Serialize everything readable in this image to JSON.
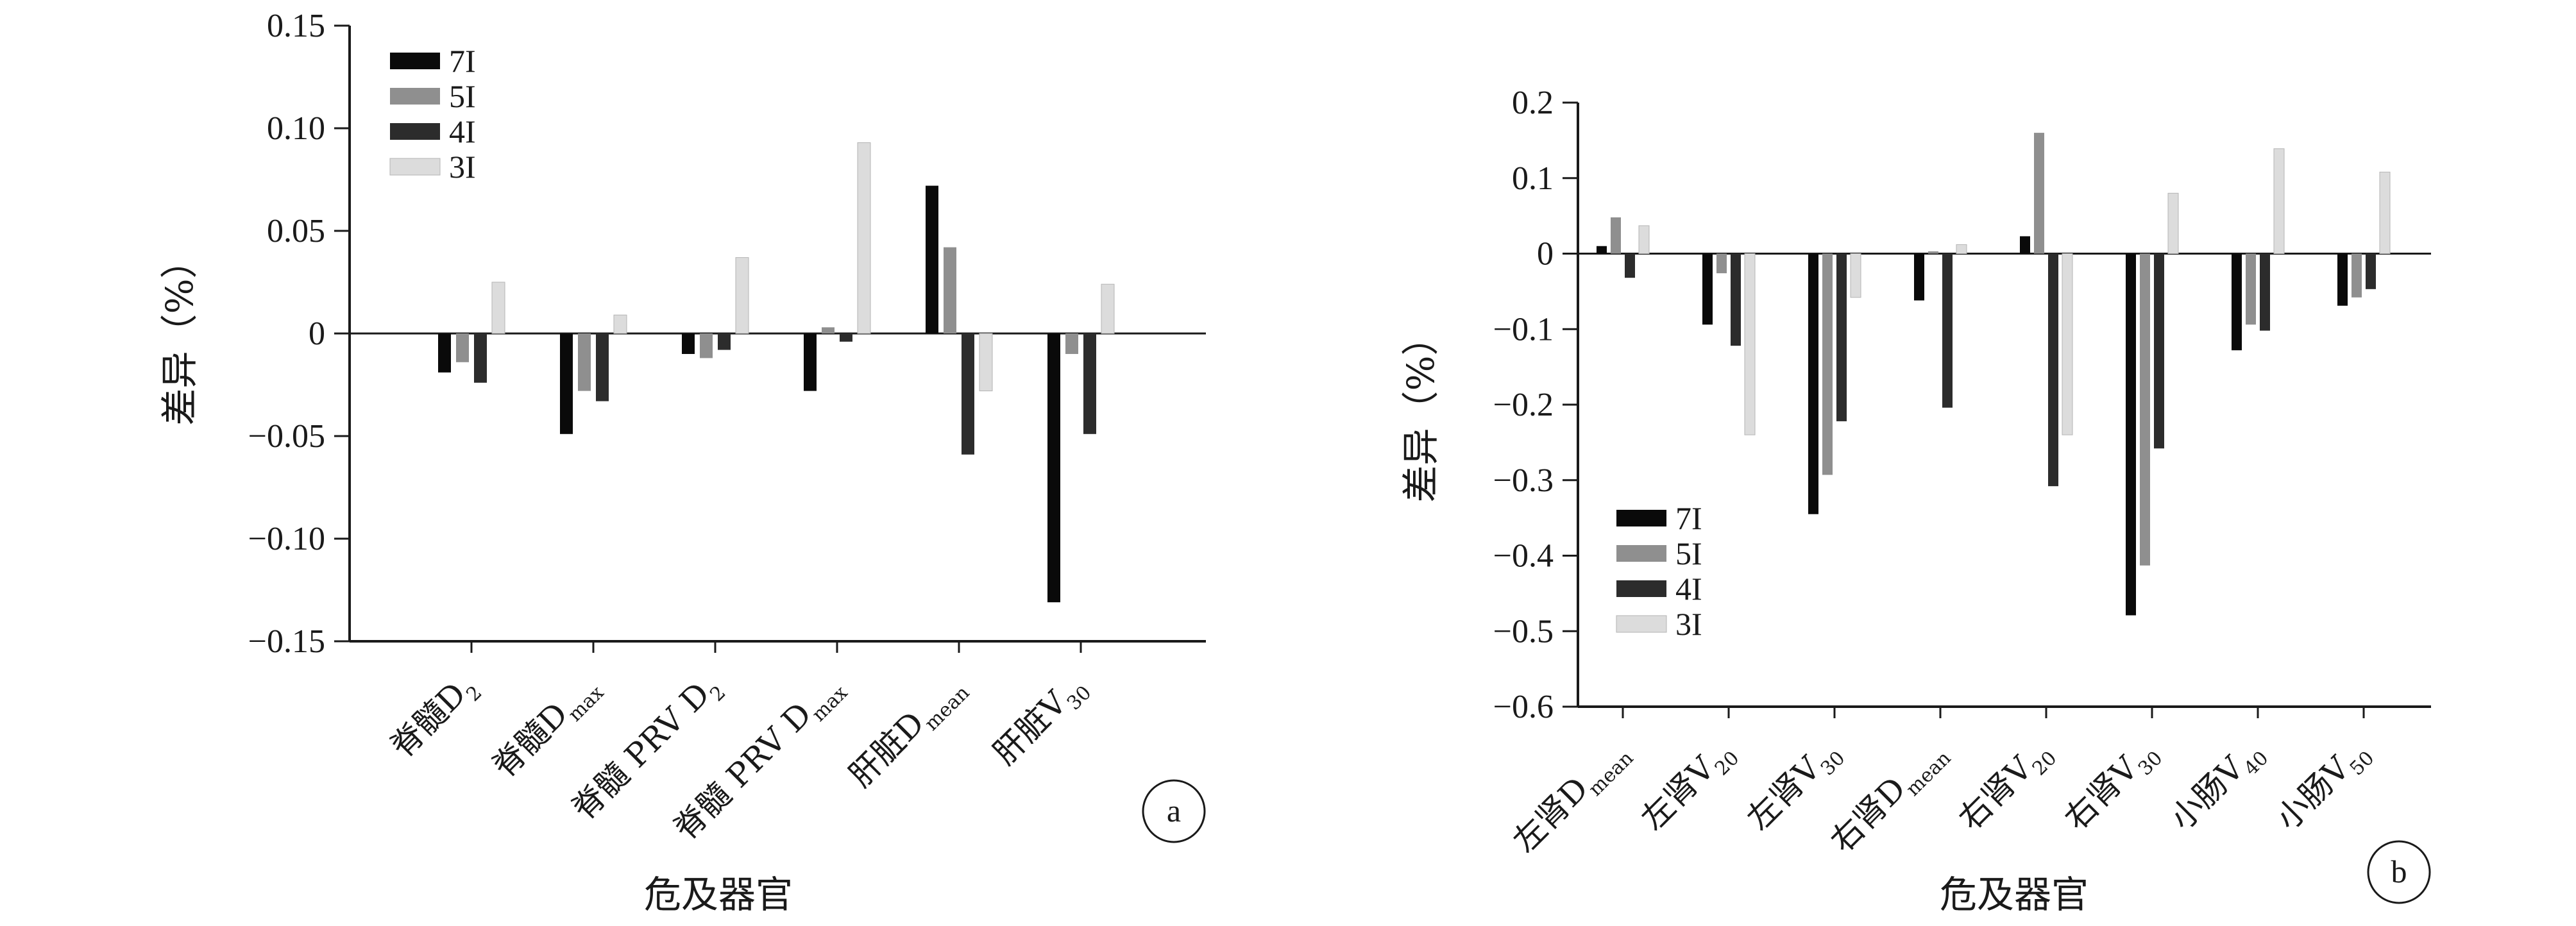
{
  "colors": {
    "7I": "#0a0a0a",
    "5I": "#8f8f8f",
    "4I": "#2c2c2c",
    "3I": "#dcdcdc"
  },
  "chart_data": [
    {
      "type": "bar",
      "panel": "a",
      "xlabel": "危及器官",
      "ylabel": "差异（%）",
      "ylim": [
        -0.15,
        0.15
      ],
      "yticks": [
        -0.15,
        -0.1,
        -0.05,
        0,
        0.05,
        0.1,
        0.15
      ],
      "ytick_labels": [
        "−0.15",
        "−0.10",
        "−0.05",
        "0",
        "0.05",
        "0.10",
        "0.15"
      ],
      "legend_position": "top-left",
      "categories": [
        {
          "main": "脊髓D",
          "sub": "2"
        },
        {
          "main": "脊髓D",
          "sub": "max"
        },
        {
          "main": "脊髓 PRV D",
          "sub": "2"
        },
        {
          "main": "脊髓 PRV D",
          "sub": "max"
        },
        {
          "main": "肝脏D",
          "sub": "mean"
        },
        {
          "main": "肝脏V",
          "sub": "30"
        }
      ],
      "series": [
        {
          "name": "7I",
          "values": [
            -0.019,
            -0.049,
            -0.01,
            -0.028,
            0.072,
            -0.131
          ]
        },
        {
          "name": "5I",
          "values": [
            -0.014,
            -0.028,
            -0.012,
            0.003,
            0.042,
            -0.01
          ]
        },
        {
          "name": "4I",
          "values": [
            -0.024,
            -0.033,
            -0.008,
            -0.004,
            -0.059,
            -0.049
          ]
        },
        {
          "name": "3I",
          "values": [
            0.025,
            0.009,
            0.037,
            0.093,
            -0.028,
            0.024
          ]
        }
      ]
    },
    {
      "type": "bar",
      "panel": "b",
      "xlabel": "危及器官",
      "ylabel": "差异（%）",
      "ylim": [
        -0.6,
        0.2
      ],
      "yticks": [
        -0.6,
        -0.5,
        -0.4,
        -0.3,
        -0.2,
        -0.1,
        0,
        0.1,
        0.2
      ],
      "ytick_labels": [
        "−0.6",
        "−0.5",
        "−0.4",
        "−0.3",
        "−0.2",
        "−0.1",
        "0",
        "0.1",
        "0.2"
      ],
      "legend_position": "bottom-left",
      "categories": [
        {
          "main": "左肾D",
          "sub": "mean"
        },
        {
          "main": "左肾V",
          "sub": "20"
        },
        {
          "main": "左肾V",
          "sub": "30"
        },
        {
          "main": "右肾D",
          "sub": "mean"
        },
        {
          "main": "右肾V",
          "sub": "20"
        },
        {
          "main": "右肾V",
          "sub": "30"
        },
        {
          "main": "小肠V",
          "sub": "40"
        },
        {
          "main": "小肠V",
          "sub": "50"
        }
      ],
      "series": [
        {
          "name": "7I",
          "values": [
            0.01,
            -0.094,
            -0.345,
            -0.062,
            0.023,
            -0.479,
            -0.128,
            -0.069
          ]
        },
        {
          "name": "5I",
          "values": [
            0.048,
            -0.026,
            -0.293,
            0.003,
            0.16,
            -0.413,
            -0.094,
            -0.058
          ]
        },
        {
          "name": "4I",
          "values": [
            -0.032,
            -0.122,
            -0.222,
            -0.204,
            -0.308,
            -0.258,
            -0.102,
            -0.047
          ]
        },
        {
          "name": "3I",
          "values": [
            0.037,
            -0.24,
            -0.058,
            0.012,
            -0.24,
            0.08,
            0.139,
            0.108
          ]
        }
      ]
    }
  ]
}
